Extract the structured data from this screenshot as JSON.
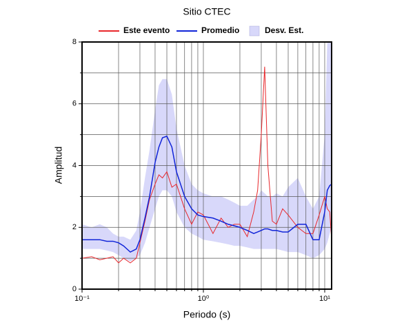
{
  "chart_data": {
    "type": "line",
    "title": "Sitio CTEC",
    "x_label": "Periodo (s)",
    "y_label": "Amplitud",
    "x_log": true,
    "grid": true,
    "x": [
      0.1,
      0.12,
      0.14,
      0.16,
      0.18,
      0.2,
      0.22,
      0.25,
      0.28,
      0.3,
      0.33,
      0.36,
      0.4,
      0.43,
      0.46,
      0.5,
      0.55,
      0.6,
      0.7,
      0.8,
      0.9,
      1.0,
      1.2,
      1.4,
      1.6,
      1.8,
      2.0,
      2.3,
      2.6,
      2.8,
      3.0,
      3.2,
      3.4,
      3.7,
      4.0,
      4.5,
      5,
      6,
      7,
      8,
      9,
      10,
      10.5,
      11,
      11.4
    ],
    "series": [
      {
        "name": "Este evento",
        "color": "#e8262a",
        "values": [
          1.0,
          1.05,
          0.95,
          1.0,
          1.05,
          0.85,
          1.0,
          0.85,
          1.0,
          1.5,
          2.2,
          2.9,
          3.4,
          3.7,
          3.6,
          3.8,
          3.3,
          3.4,
          2.6,
          2.1,
          2.5,
          2.4,
          1.8,
          2.3,
          2.0,
          2.1,
          2.1,
          1.7,
          2.5,
          3.2,
          5.0,
          7.2,
          4.0,
          2.2,
          2.1,
          2.6,
          2.4,
          2.0,
          1.8,
          1.8,
          2.4,
          3.0,
          2.6,
          2.5,
          1.6
        ]
      },
      {
        "name": "Promedio",
        "color": "#1024d8",
        "values": [
          1.6,
          1.6,
          1.6,
          1.55,
          1.55,
          1.5,
          1.4,
          1.2,
          1.3,
          1.6,
          2.3,
          3.0,
          4.1,
          4.6,
          4.9,
          4.95,
          4.6,
          3.8,
          3.0,
          2.6,
          2.4,
          2.35,
          2.3,
          2.2,
          2.1,
          2.05,
          2.0,
          1.9,
          1.8,
          1.85,
          1.9,
          1.95,
          1.95,
          1.9,
          1.9,
          1.85,
          1.85,
          2.1,
          2.1,
          1.6,
          1.6,
          2.5,
          3.2,
          3.35,
          3.4
        ]
      },
      {
        "name": "Desv. Est.",
        "color": "#d8d8fa",
        "upper": [
          2.1,
          2.0,
          2.1,
          2.0,
          1.8,
          1.7,
          1.7,
          1.6,
          1.9,
          2.5,
          3.6,
          4.5,
          5.8,
          6.6,
          6.8,
          6.8,
          6.3,
          5.2,
          4.0,
          3.4,
          3.2,
          3.1,
          3.0,
          3.0,
          2.9,
          2.8,
          2.7,
          2.7,
          2.9,
          3.0,
          3.2,
          3.1,
          3.0,
          3.0,
          3.1,
          3.0,
          3.3,
          3.6,
          3.0,
          2.6,
          3.0,
          5.0,
          8.0,
          8.0,
          8.0
        ],
        "lower": [
          1.3,
          1.3,
          1.3,
          1.25,
          1.2,
          1.1,
          1.0,
          0.9,
          1.0,
          1.1,
          1.5,
          2.0,
          2.6,
          3.0,
          3.2,
          3.2,
          3.0,
          2.5,
          2.0,
          1.8,
          1.7,
          1.6,
          1.55,
          1.5,
          1.45,
          1.4,
          1.4,
          1.35,
          1.3,
          1.3,
          1.3,
          1.3,
          1.3,
          1.3,
          1.3,
          1.25,
          1.2,
          1.2,
          1.1,
          1.0,
          1.1,
          1.3,
          1.5,
          1.8,
          2.0
        ]
      }
    ],
    "xlim": [
      0.1,
      11.4
    ],
    "ylim": [
      0,
      8
    ],
    "xticks": [
      {
        "value": 0.1,
        "label": "10⁻¹"
      },
      {
        "value": 1,
        "label": "10⁰"
      },
      {
        "value": 10,
        "label": "10¹"
      }
    ],
    "minor_xticks": [
      0.2,
      0.3,
      0.4,
      0.5,
      0.6,
      0.7,
      0.8,
      0.9,
      2,
      3,
      4,
      5,
      6,
      7,
      8,
      9
    ],
    "yticks": [
      0,
      2,
      4,
      6,
      8
    ],
    "minor_yticks": [
      1,
      3,
      5,
      7
    ]
  }
}
